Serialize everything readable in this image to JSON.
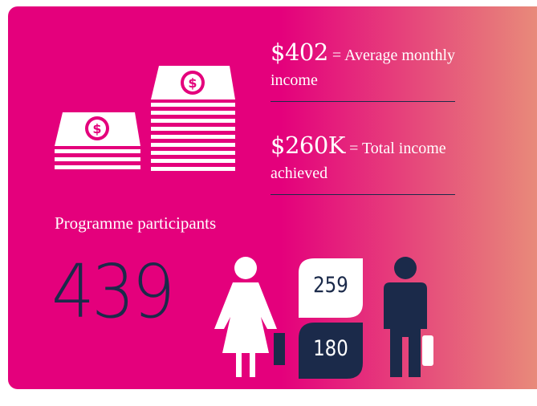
{
  "stats": [
    {
      "value": "$402",
      "label": "= Average monthly income"
    },
    {
      "value": "$260K",
      "label": "= Total income achieved"
    }
  ],
  "participants": {
    "title": "Programme participants",
    "total": 439,
    "female": 259,
    "male": 180
  }
}
